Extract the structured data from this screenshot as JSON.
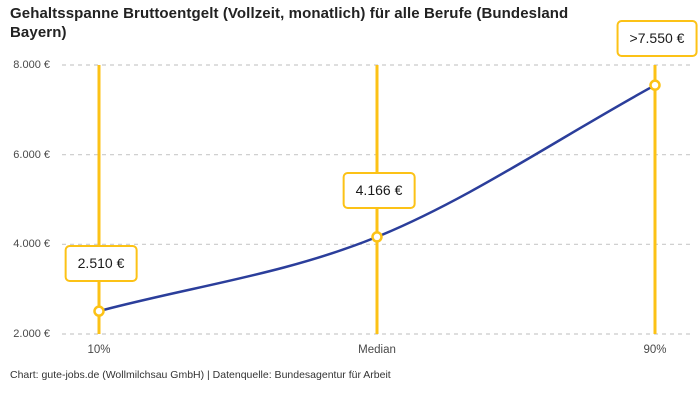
{
  "title": "Gehaltsspanne Bruttoentgelt (Vollzeit, monatlich) für alle Berufe (Bundesland Bayern)",
  "footer": "Chart: gute-jobs.de (Wollmilchsau GmbH) | Datenquelle: Bundesagentur für Arbeit",
  "colors": {
    "background": "#FFFFFF",
    "accent_yellow": "#FCC216",
    "line_blue": "#2B3E9B",
    "grid_gray": "#C9C9C9",
    "title_text": "#222222",
    "axis_text": "#494949",
    "label_text": "#1A1A1A"
  },
  "chart_data": {
    "type": "line",
    "title": "Gehaltsspanne Bruttoentgelt (Vollzeit, monatlich) für alle Berufe (Bundesland Bayern)",
    "categories": [
      "10%",
      "Median",
      "90%"
    ],
    "values": [
      2510,
      4166,
      7550
    ],
    "value_labels": [
      "2.510 €",
      "4.166 €",
      ">7.550 €"
    ],
    "xlabel": "",
    "ylabel": "",
    "ylim": [
      2000,
      8000
    ],
    "yticks": [
      2000,
      4000,
      6000,
      8000
    ],
    "ytick_labels": [
      "2.000 €",
      "4.000 €",
      "6.000 €",
      "8.000 €"
    ],
    "grid": "horizontal-dashed",
    "legend": "none",
    "marker": "open-circle",
    "annotations": "yellow vertical guide line at each percentile; value label in yellow-bordered white box above each data point"
  }
}
